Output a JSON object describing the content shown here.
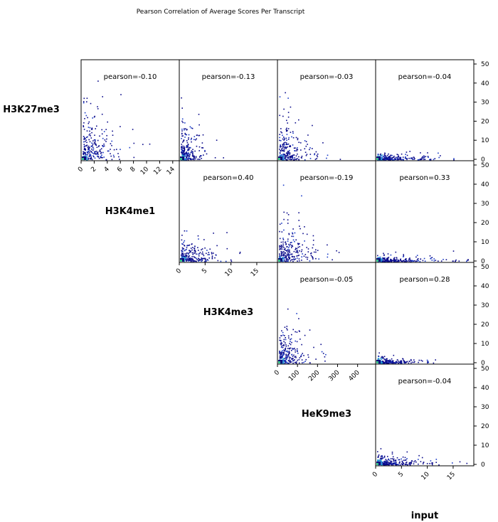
{
  "chart_data": {
    "type": "heatmap",
    "title": "Pearson Correlation of Average Scores Per Transcript",
    "diag_labels": [
      "H3K27me3",
      "H3K4me1",
      "H3K4me3",
      "HeK9me3",
      "input"
    ],
    "right_axis": {
      "ylim": [
        0,
        50
      ],
      "ticks": [
        0,
        10,
        20,
        30,
        40,
        50
      ]
    },
    "column_x_axes": [
      {
        "col": 0,
        "xlim": [
          0,
          15
        ],
        "ticks": [
          0,
          2,
          4,
          6,
          8,
          10,
          12,
          14
        ]
      },
      {
        "col": 1,
        "xlim": [
          0,
          19
        ],
        "ticks": [
          0,
          5,
          10,
          15
        ]
      },
      {
        "col": 2,
        "xlim": [
          0,
          490
        ],
        "ticks": [
          0,
          100,
          200,
          300,
          400
        ]
      },
      {
        "col": 3,
        "xlim": [
          0,
          19
        ],
        "ticks": [
          0,
          5,
          10,
          15
        ]
      }
    ],
    "panels": [
      {
        "row": 0,
        "col": 0,
        "label": "pearson=-0.10",
        "pearson": -0.1,
        "spread": 0.35,
        "height": 0.55
      },
      {
        "row": 0,
        "col": 1,
        "label": "pearson=-0.13",
        "pearson": -0.13,
        "spread": 0.2,
        "height": 0.35
      },
      {
        "row": 0,
        "col": 2,
        "label": "pearson=-0.03",
        "pearson": -0.03,
        "spread": 0.35,
        "height": 0.4
      },
      {
        "row": 0,
        "col": 3,
        "label": "pearson=-0.04",
        "pearson": -0.04,
        "spread": 0.5,
        "height": 0.06
      },
      {
        "row": 1,
        "col": 1,
        "label": "pearson=0.40",
        "pearson": 0.4,
        "spread": 0.4,
        "height": 0.25
      },
      {
        "row": 1,
        "col": 2,
        "label": "pearson=-0.19",
        "pearson": -0.19,
        "spread": 0.35,
        "height": 0.4
      },
      {
        "row": 1,
        "col": 3,
        "label": "pearson=0.33",
        "pearson": 0.33,
        "spread": 0.6,
        "height": 0.06
      },
      {
        "row": 2,
        "col": 2,
        "label": "pearson=-0.05",
        "pearson": -0.05,
        "spread": 0.3,
        "height": 0.35
      },
      {
        "row": 2,
        "col": 3,
        "label": "pearson=0.28",
        "pearson": 0.28,
        "spread": 0.4,
        "height": 0.06
      },
      {
        "row": 3,
        "col": 3,
        "label": "pearson=-0.04",
        "pearson": -0.04,
        "spread": 0.5,
        "height": 0.1
      }
    ]
  }
}
